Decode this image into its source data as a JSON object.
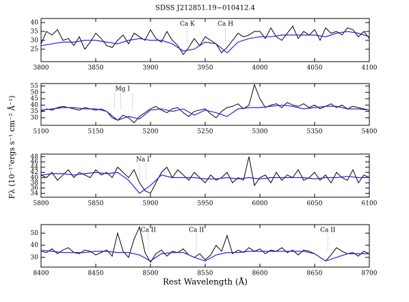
{
  "figure": {
    "title": "SDSS J212851.19−010412.4",
    "ylabel": "Fλ (10⁻¹⁷ergs s⁻¹ cm⁻² Å⁻¹)",
    "xlabel": "Rest Wavelength (Å)"
  },
  "chart_data": [
    {
      "type": "line",
      "xlim": [
        3800,
        4100
      ],
      "xticks": [
        3800,
        3850,
        3900,
        3950,
        4000,
        4050,
        4100
      ],
      "ylim": [
        18,
        42.3
      ],
      "yticks": [
        25,
        30,
        35,
        40
      ],
      "annotations": [
        {
          "text": "Ca K",
          "x": [
            3933.7
          ]
        },
        {
          "text": "Ca H",
          "x": [
            3968.5
          ]
        }
      ],
      "series": [
        {
          "color": "#000000",
          "x": [
            3800,
            3805,
            3810,
            3815,
            3820,
            3825,
            3830,
            3835,
            3840,
            3845,
            3850,
            3855,
            3860,
            3865,
            3870,
            3875,
            3880,
            3885,
            3890,
            3895,
            3900,
            3905,
            3910,
            3915,
            3920,
            3925,
            3930,
            3935,
            3940,
            3945,
            3950,
            3955,
            3960,
            3965,
            3970,
            3975,
            3980,
            3985,
            3990,
            3995,
            4000,
            4005,
            4010,
            4015,
            4020,
            4025,
            4030,
            4035,
            4040,
            4045,
            4050,
            4055,
            4060,
            4065,
            4070,
            4075,
            4080,
            4085,
            4090,
            4095,
            4100
          ],
          "values": [
            28,
            35,
            33,
            36,
            30,
            31,
            27,
            32,
            25,
            29,
            34,
            31,
            27,
            26,
            30,
            33,
            28,
            34,
            32,
            30,
            36,
            31,
            29,
            35,
            30,
            27,
            22,
            26,
            31,
            27,
            32,
            30,
            28,
            23,
            26,
            30,
            34,
            32,
            33,
            35,
            35,
            31,
            37,
            32,
            30,
            34,
            38,
            31,
            35,
            33,
            36,
            30,
            37,
            34,
            35,
            33,
            37,
            36,
            32,
            35,
            31
          ]
        },
        {
          "color": "#2222dd",
          "x": [
            3800,
            3810,
            3820,
            3830,
            3840,
            3850,
            3860,
            3870,
            3880,
            3890,
            3900,
            3910,
            3920,
            3930,
            3940,
            3950,
            3960,
            3970,
            3980,
            3990,
            4000,
            4010,
            4020,
            4030,
            4040,
            4050,
            4060,
            4070,
            4080,
            4090,
            4100
          ],
          "values": [
            27,
            28,
            29,
            29,
            30,
            30,
            29,
            28,
            30,
            31,
            30,
            30,
            28,
            24,
            25,
            29,
            28,
            23,
            29,
            31,
            32,
            32,
            33,
            33,
            33,
            33,
            32,
            34,
            35,
            34,
            32
          ]
        }
      ]
    },
    {
      "type": "line",
      "xlim": [
        5100,
        5400
      ],
      "xticks": [
        5100,
        5150,
        5200,
        5250,
        5300,
        5350,
        5400
      ],
      "ylim": [
        24,
        57
      ],
      "yticks": [
        30,
        35,
        40,
        45,
        50,
        55
      ],
      "annotations": [
        {
          "text": "Mg I",
          "x": [
            5167.3,
            5172.7,
            5183.6
          ]
        }
      ],
      "series": [
        {
          "color": "#000000",
          "x": [
            5100,
            5105,
            5110,
            5115,
            5120,
            5125,
            5130,
            5135,
            5140,
            5145,
            5150,
            5155,
            5160,
            5165,
            5170,
            5175,
            5180,
            5185,
            5190,
            5195,
            5200,
            5205,
            5210,
            5215,
            5220,
            5225,
            5230,
            5235,
            5240,
            5245,
            5250,
            5255,
            5260,
            5265,
            5270,
            5275,
            5280,
            5285,
            5290,
            5295,
            5300,
            5305,
            5310,
            5315,
            5320,
            5325,
            5330,
            5335,
            5340,
            5345,
            5350,
            5355,
            5360,
            5365,
            5370,
            5375,
            5380,
            5385,
            5390,
            5395,
            5400
          ],
          "values": [
            35,
            37,
            36,
            38,
            39,
            38,
            37,
            36,
            38,
            37,
            36,
            37,
            35,
            30,
            28,
            32,
            30,
            26,
            31,
            34,
            37,
            39,
            36,
            34,
            37,
            38,
            34,
            31,
            35,
            36,
            37,
            33,
            30,
            35,
            38,
            39,
            41,
            37,
            40,
            56,
            45,
            38,
            40,
            41,
            38,
            42,
            40,
            39,
            41,
            38,
            40,
            37,
            39,
            41,
            38,
            40,
            37,
            39,
            38,
            37,
            36
          ]
        },
        {
          "color": "#2222dd",
          "x": [
            5100,
            5110,
            5120,
            5130,
            5140,
            5150,
            5160,
            5170,
            5180,
            5190,
            5200,
            5210,
            5220,
            5230,
            5240,
            5250,
            5260,
            5270,
            5280,
            5290,
            5300,
            5310,
            5320,
            5330,
            5340,
            5350,
            5360,
            5370,
            5380,
            5390,
            5400
          ],
          "values": [
            36,
            37,
            38,
            38,
            37,
            37,
            35,
            28,
            31,
            29,
            36,
            37,
            35,
            37,
            32,
            36,
            34,
            31,
            37,
            38,
            38,
            39,
            40,
            39,
            37,
            38,
            39,
            39,
            37,
            37,
            36
          ]
        }
      ]
    },
    {
      "type": "line",
      "xlim": [
        5800,
        6100
      ],
      "xticks": [
        5800,
        5850,
        5900,
        5950,
        6000,
        6050,
        6100
      ],
      "ylim": [
        32.5,
        49
      ],
      "yticks": [
        34,
        36,
        38,
        40,
        42,
        44,
        46,
        48
      ],
      "annotations": [
        {
          "text": "Na I",
          "x": [
            5890,
            5896
          ]
        }
      ],
      "series": [
        {
          "color": "#000000",
          "x": [
            5800,
            5805,
            5810,
            5815,
            5820,
            5825,
            5830,
            5835,
            5840,
            5845,
            5850,
            5855,
            5860,
            5865,
            5870,
            5875,
            5880,
            5885,
            5890,
            5895,
            5900,
            5905,
            5910,
            5915,
            5920,
            5925,
            5930,
            5935,
            5940,
            5945,
            5950,
            5955,
            5960,
            5965,
            5970,
            5975,
            5980,
            5985,
            5990,
            5995,
            6000,
            6005,
            6010,
            6015,
            6020,
            6025,
            6030,
            6035,
            6040,
            6045,
            6050,
            6055,
            6060,
            6065,
            6070,
            6075,
            6080,
            6085,
            6090,
            6095,
            6100
          ],
          "values": [
            41,
            40,
            42,
            39,
            41,
            43,
            40,
            42,
            41,
            40,
            43,
            41,
            42,
            40,
            44,
            42,
            40,
            43,
            38,
            35,
            34,
            38,
            42,
            44,
            40,
            43,
            41,
            39,
            42,
            40,
            38,
            41,
            39,
            40,
            42,
            38,
            40,
            39,
            48,
            37,
            40,
            41,
            38,
            42,
            39,
            41,
            40,
            43,
            39,
            40,
            42,
            39,
            41,
            38,
            42,
            40,
            39,
            43,
            38,
            41,
            40
          ]
        },
        {
          "color": "#2222dd",
          "x": [
            5800,
            5810,
            5820,
            5830,
            5840,
            5850,
            5860,
            5870,
            5880,
            5890,
            5900,
            5910,
            5920,
            5930,
            5940,
            5950,
            5960,
            5970,
            5980,
            5990,
            6000,
            6010,
            6020,
            6030,
            6040,
            6050,
            6060,
            6070,
            6080,
            6090,
            6100
          ],
          "values": [
            41,
            41.5,
            41.5,
            41,
            41.5,
            42,
            41.5,
            42,
            39,
            34,
            37,
            41,
            40,
            40,
            40,
            39.5,
            39.5,
            40,
            39.5,
            40,
            39.5,
            40,
            40,
            40,
            40,
            39.5,
            40,
            40,
            40.5,
            40,
            40
          ]
        }
      ]
    },
    {
      "type": "line",
      "xlim": [
        8400,
        8700
      ],
      "xticks": [
        8400,
        8450,
        8500,
        8550,
        8600,
        8650,
        8700
      ],
      "ylim": [
        22,
        57
      ],
      "yticks": [
        30,
        40,
        50
      ],
      "annotations": [
        {
          "text": "Ca II",
          "x": [
            8498
          ]
        },
        {
          "text": "Ca II",
          "x": [
            8542
          ]
        },
        {
          "text": "Ca II",
          "x": [
            8662
          ]
        }
      ],
      "series": [
        {
          "color": "#000000",
          "x": [
            8400,
            8405,
            8410,
            8415,
            8420,
            8425,
            8430,
            8435,
            8440,
            8445,
            8450,
            8455,
            8460,
            8465,
            8470,
            8475,
            8480,
            8485,
            8490,
            8495,
            8500,
            8505,
            8510,
            8515,
            8520,
            8525,
            8530,
            8535,
            8540,
            8545,
            8550,
            8555,
            8560,
            8565,
            8570,
            8575,
            8580,
            8585,
            8590,
            8595,
            8600,
            8605,
            8610,
            8615,
            8620,
            8625,
            8630,
            8635,
            8640,
            8645,
            8650,
            8655,
            8660,
            8665,
            8670,
            8675,
            8680,
            8685,
            8690,
            8695,
            8700
          ],
          "values": [
            35,
            34,
            37,
            33,
            36,
            38,
            34,
            33,
            36,
            35,
            32,
            34,
            36,
            31,
            50,
            35,
            30,
            45,
            55,
            34,
            26,
            33,
            36,
            31,
            35,
            34,
            37,
            32,
            30,
            33,
            28,
            32,
            40,
            35,
            48,
            33,
            36,
            34,
            38,
            35,
            37,
            33,
            36,
            35,
            38,
            34,
            36,
            32,
            36,
            35,
            33,
            30,
            27,
            32,
            38,
            35,
            33,
            34,
            31,
            35,
            33
          ]
        },
        {
          "color": "#2222dd",
          "x": [
            8400,
            8410,
            8420,
            8430,
            8440,
            8450,
            8460,
            8470,
            8480,
            8490,
            8500,
            8510,
            8520,
            8530,
            8540,
            8550,
            8560,
            8570,
            8580,
            8590,
            8600,
            8610,
            8620,
            8630,
            8640,
            8650,
            8660,
            8670,
            8680,
            8690,
            8700
          ],
          "values": [
            36,
            35,
            34,
            34,
            34,
            35,
            35,
            34,
            34,
            32,
            27,
            33,
            34,
            34,
            30,
            27,
            32,
            34,
            34,
            35,
            35,
            35,
            35,
            35,
            35,
            33,
            27,
            30,
            33,
            33,
            33
          ]
        }
      ]
    }
  ]
}
